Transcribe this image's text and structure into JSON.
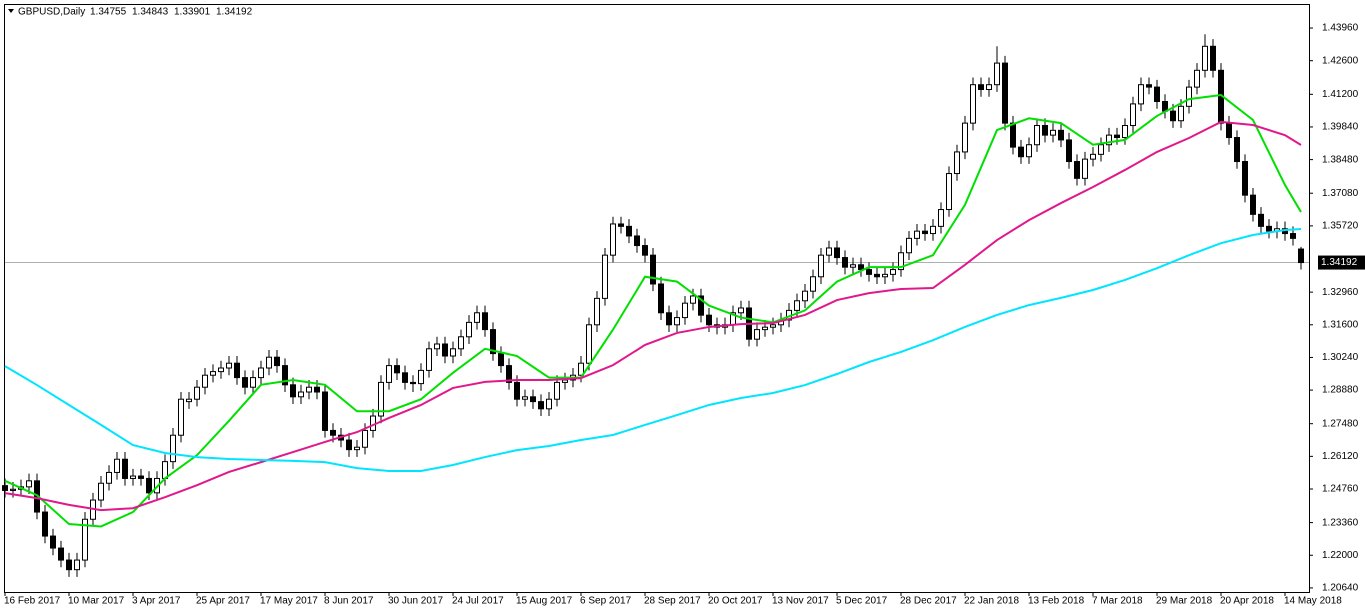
{
  "chart_data": {
    "type": "candlestick",
    "title": "GBPUSD,Daily",
    "header_values": [
      1.34755,
      1.34843,
      1.33901,
      1.34192
    ],
    "last_price": 1.34192,
    "up_color": "#ffffff",
    "down_color": "#000000",
    "ylim": [
      1.2047,
      1.4492
    ],
    "yticks": [
      {
        "value": 1.4396,
        "label": "1.43960"
      },
      {
        "value": 1.426,
        "label": "1.42600"
      },
      {
        "value": 1.412,
        "label": "1.41200"
      },
      {
        "value": 1.3984,
        "label": "1.39840"
      },
      {
        "value": 1.3848,
        "label": "1.38480"
      },
      {
        "value": 1.3708,
        "label": "1.37080"
      },
      {
        "value": 1.3572,
        "label": "1.35720"
      },
      {
        "value": 1.3296,
        "label": "1.32960"
      },
      {
        "value": 1.316,
        "label": "1.31600"
      },
      {
        "value": 1.3024,
        "label": "1.30240"
      },
      {
        "value": 1.2888,
        "label": "1.28880"
      },
      {
        "value": 1.2748,
        "label": "1.27480"
      },
      {
        "value": 1.2612,
        "label": "1.26120"
      },
      {
        "value": 1.2476,
        "label": "1.24760"
      },
      {
        "value": 1.2336,
        "label": "1.23360"
      },
      {
        "value": 1.22,
        "label": "1.22000"
      },
      {
        "value": 1.2064,
        "label": "1.20640"
      }
    ],
    "categories": [
      "16 Feb 2017",
      null,
      null,
      null,
      null,
      null,
      null,
      null,
      "10 Mar 2017",
      null,
      null,
      null,
      null,
      null,
      null,
      null,
      "3 Apr 2017",
      null,
      null,
      null,
      null,
      null,
      null,
      null,
      "25 Apr 2017",
      null,
      null,
      null,
      null,
      null,
      null,
      null,
      "17 May 2017",
      null,
      null,
      null,
      null,
      null,
      null,
      null,
      "8 Jun 2017",
      null,
      null,
      null,
      null,
      null,
      null,
      null,
      "30 Jun 2017",
      null,
      null,
      null,
      null,
      null,
      null,
      null,
      "24 Jul 2017",
      null,
      null,
      null,
      null,
      null,
      null,
      null,
      "15 Aug 2017",
      null,
      null,
      null,
      null,
      null,
      null,
      null,
      "6 Sep 2017",
      null,
      null,
      null,
      null,
      null,
      null,
      null,
      "28 Sep 2017",
      null,
      null,
      null,
      null,
      null,
      null,
      null,
      "20 Oct 2017",
      null,
      null,
      null,
      null,
      null,
      null,
      null,
      "13 Nov 2017",
      null,
      null,
      null,
      null,
      null,
      null,
      null,
      "5 Dec 2017",
      null,
      null,
      null,
      null,
      null,
      null,
      null,
      "28 Dec 2017",
      null,
      null,
      null,
      null,
      null,
      null,
      null,
      "22 Jan 2018",
      null,
      null,
      null,
      null,
      null,
      null,
      null,
      "13 Feb 2018",
      null,
      null,
      null,
      null,
      null,
      null,
      null,
      "7 Mar 2018",
      null,
      null,
      null,
      null,
      null,
      null,
      null,
      "29 Mar 2018",
      null,
      null,
      null,
      null,
      null,
      null,
      null,
      "20 Apr 2018",
      null,
      null,
      null,
      null,
      null,
      null,
      null,
      "14 May 2018",
      null,
      null
    ],
    "ohlc": [
      [
        1.249,
        1.252,
        1.244,
        1.247
      ],
      [
        1.247,
        1.2505,
        1.244,
        1.2475
      ],
      [
        1.2475,
        1.2515,
        1.2445,
        1.2485
      ],
      [
        1.2485,
        1.254,
        1.2455,
        1.251
      ],
      [
        1.251,
        1.254,
        1.235,
        1.238
      ],
      [
        1.238,
        1.241,
        1.225,
        1.228
      ],
      [
        1.228,
        1.231,
        1.22,
        1.223
      ],
      [
        1.223,
        1.226,
        1.215,
        1.218
      ],
      [
        1.218,
        1.221,
        1.211,
        1.214
      ],
      [
        1.214,
        1.221,
        1.211,
        1.218
      ],
      [
        1.218,
        1.238,
        1.215,
        1.235
      ],
      [
        1.235,
        1.246,
        1.232,
        1.243
      ],
      [
        1.243,
        1.253,
        1.24,
        1.25
      ],
      [
        1.25,
        1.2575,
        1.247,
        1.2545
      ],
      [
        1.2545,
        1.263,
        1.2515,
        1.26
      ],
      [
        1.26,
        1.263,
        1.249,
        1.252
      ],
      [
        1.252,
        1.256,
        1.249,
        1.253
      ],
      [
        1.253,
        1.256,
        1.249,
        1.252
      ],
      [
        1.252,
        1.255,
        1.243,
        1.246
      ],
      [
        1.246,
        1.255,
        1.243,
        1.252
      ],
      [
        1.252,
        1.262,
        1.249,
        1.259
      ],
      [
        1.259,
        1.273,
        1.256,
        1.27
      ],
      [
        1.27,
        1.288,
        1.267,
        1.285
      ],
      [
        1.284,
        1.288,
        1.281,
        1.285
      ],
      [
        1.285,
        1.293,
        1.282,
        1.29
      ],
      [
        1.29,
        1.298,
        1.287,
        1.295
      ],
      [
        1.295,
        1.2995,
        1.292,
        1.2965
      ],
      [
        1.2965,
        1.301,
        1.2935,
        1.298
      ],
      [
        1.298,
        1.303,
        1.295,
        1.3
      ],
      [
        1.3,
        1.303,
        1.291,
        1.294
      ],
      [
        1.294,
        1.297,
        1.287,
        1.29
      ],
      [
        1.29,
        1.297,
        1.287,
        1.294
      ],
      [
        1.294,
        1.301,
        1.291,
        1.298
      ],
      [
        1.298,
        1.3055,
        1.295,
        1.3025
      ],
      [
        1.3025,
        1.3055,
        1.296,
        1.299
      ],
      [
        1.299,
        1.302,
        1.288,
        1.291
      ],
      [
        1.291,
        1.294,
        1.283,
        1.286
      ],
      [
        1.286,
        1.291,
        1.283,
        1.288
      ],
      [
        1.288,
        1.293,
        1.285,
        1.29
      ],
      [
        1.29,
        1.293,
        1.285,
        1.288
      ],
      [
        1.288,
        1.291,
        1.269,
        1.272
      ],
      [
        1.272,
        1.275,
        1.267,
        1.27
      ],
      [
        1.27,
        1.273,
        1.265,
        1.268
      ],
      [
        1.268,
        1.271,
        1.261,
        1.264
      ],
      [
        1.264,
        1.268,
        1.261,
        1.265
      ],
      [
        1.265,
        1.275,
        1.262,
        1.272
      ],
      [
        1.272,
        1.281,
        1.269,
        1.278
      ],
      [
        1.278,
        1.295,
        1.275,
        1.292
      ],
      [
        1.292,
        1.302,
        1.289,
        1.299
      ],
      [
        1.299,
        1.302,
        1.293,
        1.296
      ],
      [
        1.296,
        1.299,
        1.289,
        1.292
      ],
      [
        1.292,
        1.295,
        1.288,
        1.2915
      ],
      [
        1.2915,
        1.3,
        1.2885,
        1.297
      ],
      [
        1.297,
        1.309,
        1.294,
        1.306
      ],
      [
        1.306,
        1.311,
        1.303,
        1.308
      ],
      [
        1.308,
        1.311,
        1.3,
        1.303
      ],
      [
        1.303,
        1.309,
        1.3,
        1.306
      ],
      [
        1.306,
        1.314,
        1.303,
        1.311
      ],
      [
        1.311,
        1.32,
        1.308,
        1.317
      ],
      [
        1.317,
        1.324,
        1.314,
        1.321
      ],
      [
        1.321,
        1.324,
        1.311,
        1.314
      ],
      [
        1.314,
        1.317,
        1.301,
        1.304
      ],
      [
        1.304,
        1.307,
        1.296,
        1.299
      ],
      [
        1.299,
        1.302,
        1.289,
        1.292
      ],
      [
        1.292,
        1.295,
        1.282,
        1.285
      ],
      [
        1.285,
        1.289,
        1.282,
        1.286
      ],
      [
        1.286,
        1.289,
        1.281,
        1.284
      ],
      [
        1.284,
        1.287,
        1.278,
        1.281
      ],
      [
        1.281,
        1.288,
        1.278,
        1.285
      ],
      [
        1.285,
        1.295,
        1.282,
        1.292
      ],
      [
        1.292,
        1.296,
        1.289,
        1.293
      ],
      [
        1.293,
        1.298,
        1.29,
        1.295
      ],
      [
        1.295,
        1.303,
        1.292,
        1.3
      ],
      [
        1.3,
        1.319,
        1.297,
        1.316
      ],
      [
        1.316,
        1.33,
        1.313,
        1.327
      ],
      [
        1.327,
        1.348,
        1.324,
        1.345
      ],
      [
        1.345,
        1.361,
        1.342,
        1.358
      ],
      [
        1.358,
        1.361,
        1.354,
        1.357
      ],
      [
        1.357,
        1.36,
        1.35,
        1.353
      ],
      [
        1.353,
        1.356,
        1.346,
        1.349
      ],
      [
        1.349,
        1.352,
        1.342,
        1.345
      ],
      [
        1.345,
        1.348,
        1.33,
        1.333
      ],
      [
        1.333,
        1.336,
        1.318,
        1.321
      ],
      [
        1.321,
        1.324,
        1.313,
        1.316
      ],
      [
        1.316,
        1.322,
        1.313,
        1.319
      ],
      [
        1.319,
        1.328,
        1.316,
        1.325
      ],
      [
        1.325,
        1.331,
        1.322,
        1.328
      ],
      [
        1.328,
        1.331,
        1.317,
        1.32
      ],
      [
        1.32,
        1.323,
        1.313,
        1.316
      ],
      [
        1.316,
        1.319,
        1.312,
        1.315
      ],
      [
        1.315,
        1.319,
        1.312,
        1.316
      ],
      [
        1.316,
        1.324,
        1.313,
        1.321
      ],
      [
        1.321,
        1.326,
        1.318,
        1.323
      ],
      [
        1.323,
        1.326,
        1.307,
        1.31
      ],
      [
        1.31,
        1.317,
        1.307,
        1.314
      ],
      [
        1.314,
        1.318,
        1.311,
        1.315
      ],
      [
        1.315,
        1.319,
        1.312,
        1.316
      ],
      [
        1.316,
        1.321,
        1.313,
        1.318
      ],
      [
        1.318,
        1.325,
        1.315,
        1.322
      ],
      [
        1.322,
        1.329,
        1.319,
        1.326
      ],
      [
        1.326,
        1.333,
        1.323,
        1.33
      ],
      [
        1.33,
        1.339,
        1.327,
        1.336
      ],
      [
        1.336,
        1.348,
        1.333,
        1.345
      ],
      [
        1.345,
        1.351,
        1.342,
        1.348
      ],
      [
        1.348,
        1.351,
        1.341,
        1.344
      ],
      [
        1.344,
        1.347,
        1.337,
        1.34
      ],
      [
        1.34,
        1.344,
        1.337,
        1.341
      ],
      [
        1.341,
        1.344,
        1.336,
        1.339
      ],
      [
        1.339,
        1.342,
        1.334,
        1.337
      ],
      [
        1.337,
        1.34,
        1.333,
        1.336
      ],
      [
        1.336,
        1.34,
        1.333,
        1.337
      ],
      [
        1.337,
        1.342,
        1.334,
        1.339
      ],
      [
        1.339,
        1.349,
        1.336,
        1.346
      ],
      [
        1.346,
        1.355,
        1.343,
        1.352
      ],
      [
        1.352,
        1.358,
        1.349,
        1.355
      ],
      [
        1.355,
        1.358,
        1.351,
        1.354
      ],
      [
        1.354,
        1.36,
        1.351,
        1.357
      ],
      [
        1.357,
        1.367,
        1.354,
        1.364
      ],
      [
        1.364,
        1.382,
        1.361,
        1.379
      ],
      [
        1.379,
        1.391,
        1.376,
        1.388
      ],
      [
        1.388,
        1.403,
        1.385,
        1.4
      ],
      [
        1.4,
        1.419,
        1.397,
        1.416
      ],
      [
        1.416,
        1.419,
        1.411,
        1.414
      ],
      [
        1.414,
        1.419,
        1.411,
        1.416
      ],
      [
        1.416,
        1.432,
        1.413,
        1.425
      ],
      [
        1.425,
        1.428,
        1.397,
        1.4
      ],
      [
        1.4,
        1.403,
        1.387,
        1.39
      ],
      [
        1.39,
        1.393,
        1.383,
        1.386
      ],
      [
        1.386,
        1.394,
        1.383,
        1.391
      ],
      [
        1.391,
        1.402,
        1.388,
        1.399
      ],
      [
        1.399,
        1.402,
        1.392,
        1.395
      ],
      [
        1.395,
        1.4,
        1.392,
        1.397
      ],
      [
        1.397,
        1.4,
        1.39,
        1.393
      ],
      [
        1.393,
        1.396,
        1.381,
        1.384
      ],
      [
        1.384,
        1.387,
        1.374,
        1.377
      ],
      [
        1.377,
        1.388,
        1.374,
        1.385
      ],
      [
        1.385,
        1.39,
        1.382,
        1.387
      ],
      [
        1.387,
        1.394,
        1.384,
        1.391
      ],
      [
        1.391,
        1.398,
        1.388,
        1.395
      ],
      [
        1.395,
        1.398,
        1.391,
        1.394
      ],
      [
        1.394,
        1.402,
        1.391,
        1.399
      ],
      [
        1.399,
        1.411,
        1.396,
        1.408
      ],
      [
        1.408,
        1.419,
        1.405,
        1.416
      ],
      [
        1.416,
        1.419,
        1.412,
        1.415
      ],
      [
        1.415,
        1.418,
        1.406,
        1.409
      ],
      [
        1.409,
        1.412,
        1.402,
        1.405
      ],
      [
        1.405,
        1.408,
        1.398,
        1.401
      ],
      [
        1.401,
        1.41,
        1.398,
        1.407
      ],
      [
        1.407,
        1.418,
        1.404,
        1.415
      ],
      [
        1.415,
        1.425,
        1.412,
        1.422
      ],
      [
        1.422,
        1.437,
        1.419,
        1.432
      ],
      [
        1.432,
        1.435,
        1.419,
        1.422
      ],
      [
        1.422,
        1.425,
        1.397,
        1.4
      ],
      [
        1.4,
        1.403,
        1.391,
        1.394
      ],
      [
        1.394,
        1.397,
        1.381,
        1.384
      ],
      [
        1.384,
        1.387,
        1.367,
        1.37
      ],
      [
        1.37,
        1.373,
        1.359,
        1.362
      ],
      [
        1.362,
        1.365,
        1.354,
        1.357
      ],
      [
        1.357,
        1.36,
        1.352,
        1.355
      ],
      [
        1.355,
        1.359,
        1.352,
        1.356
      ],
      [
        1.356,
        1.359,
        1.351,
        1.354
      ],
      [
        1.354,
        1.357,
        1.349,
        1.352
      ],
      [
        1.34755,
        1.34843,
        1.33901,
        1.34192
      ]
    ],
    "line_x": [
      0,
      4,
      8,
      12,
      16,
      20,
      24,
      28,
      32,
      36,
      40,
      44,
      48,
      52,
      56,
      60,
      64,
      68,
      72,
      76,
      80,
      84,
      88,
      92,
      96,
      100,
      104,
      108,
      112,
      116,
      120,
      124,
      128,
      132,
      136,
      140,
      144,
      148,
      152,
      156,
      160,
      162
    ],
    "lines": [
      {
        "color": "#00e000",
        "values": [
          1.251,
          1.245,
          1.233,
          1.232,
          1.238,
          1.252,
          1.2617,
          1.276,
          1.291,
          1.293,
          1.291,
          1.28,
          1.28,
          1.285,
          1.296,
          1.306,
          1.303,
          1.294,
          1.294,
          1.314,
          1.336,
          1.334,
          1.324,
          1.319,
          1.317,
          1.322,
          1.334,
          1.34,
          1.34,
          1.345,
          1.366,
          1.3971,
          1.402,
          1.4,
          1.391,
          1.393,
          1.403,
          1.41,
          1.4117,
          1.4013,
          1.3742,
          1.363
        ]
      },
      {
        "color": "#e0188c",
        "values": [
          1.2459,
          1.2438,
          1.241,
          1.2388,
          1.2396,
          1.2442,
          1.2492,
          1.2547,
          1.2588,
          1.263,
          1.2672,
          1.2713,
          1.2772,
          1.2826,
          1.2897,
          1.2922,
          1.293,
          1.293,
          1.2938,
          1.2992,
          1.3076,
          1.3126,
          1.3151,
          1.3163,
          1.3167,
          1.3201,
          1.3263,
          1.3292,
          1.3309,
          1.3313,
          1.341,
          1.3513,
          1.3596,
          1.3667,
          1.3734,
          1.3805,
          1.388,
          1.3938,
          1.4005,
          1.3992,
          1.395,
          1.3909
        ]
      },
      {
        "color": "#00e5ff",
        "values": [
          1.2988,
          1.2909,
          1.2826,
          1.2743,
          1.2659,
          1.2626,
          1.2609,
          1.2601,
          1.2597,
          1.2593,
          1.2588,
          1.2563,
          1.2551,
          1.2551,
          1.2576,
          1.2609,
          1.2638,
          1.2655,
          1.268,
          1.2701,
          1.2743,
          1.2784,
          1.2826,
          1.2855,
          1.2876,
          1.2909,
          1.2955,
          1.3005,
          1.3047,
          1.3096,
          1.3151,
          1.3201,
          1.3242,
          1.3272,
          1.3305,
          1.3347,
          1.3396,
          1.345,
          1.35,
          1.3534,
          1.3555,
          1.3559
        ]
      }
    ]
  }
}
